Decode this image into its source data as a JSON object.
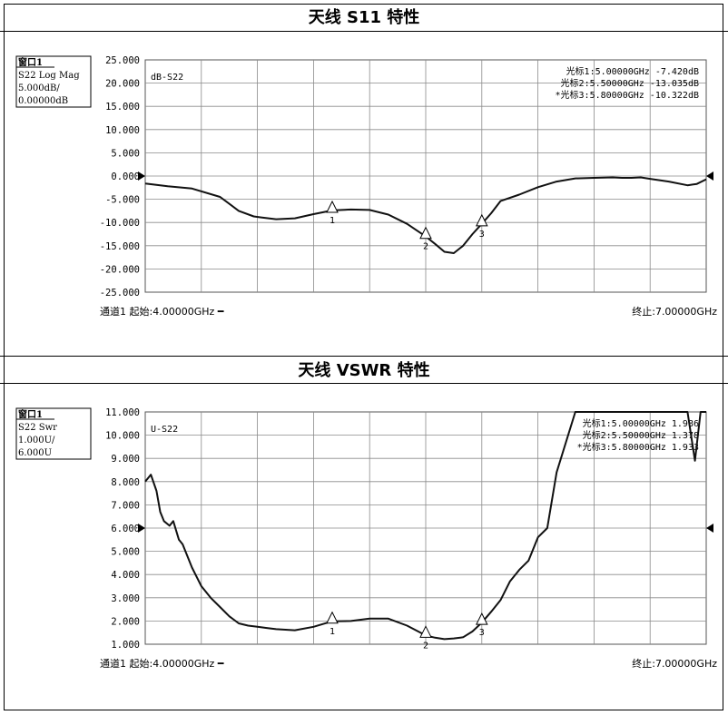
{
  "sections": [
    {
      "title": "天线 S11 特性",
      "window_box": [
        "窗口1",
        "S22 Log Mag",
        "5.000dB/",
        "0.00000dB"
      ],
      "trace_label": "dB-S22",
      "markers": [
        "光标1:5.00000GHz -7.420dB",
        "光标2:5.50000GHz -13.035dB",
        "*光标3:5.80000GHz -10.322dB"
      ],
      "footer_left": "通道1  起始:4.00000GHz ━",
      "footer_right": "终止:7.00000GHz"
    },
    {
      "title": "天线 VSWR 特性",
      "window_box": [
        "窗口1",
        "S22 Swr",
        "1.000U/",
        "6.000U"
      ],
      "trace_label": "U-S22",
      "markers": [
        "光标1:5.00000GHz 1.986",
        "光标2:5.50000GHz 1.378",
        "*光标3:5.80000GHz 1.933"
      ],
      "footer_left": "通道1  起始:4.00000GHz ━",
      "footer_right": "终止:7.00000GHz"
    }
  ],
  "chart_data": [
    {
      "type": "line",
      "title": "天线 S11 特性",
      "xlim": [
        4.0,
        7.0
      ],
      "ylim": [
        -25,
        25
      ],
      "yticks": [
        "25.000",
        "20.000",
        "15.000",
        "10.000",
        "5.000",
        "0.000",
        "-5.000",
        "-10.000",
        "-15.000",
        "-20.000",
        "-25.000"
      ],
      "grid": true,
      "series": [
        {
          "name": "dB-S22",
          "x": [
            4.0,
            4.12,
            4.25,
            4.4,
            4.5,
            4.58,
            4.62,
            4.7,
            4.8,
            4.9,
            5.0,
            5.1,
            5.2,
            5.3,
            5.4,
            5.5,
            5.55,
            5.6,
            5.65,
            5.7,
            5.75,
            5.8,
            5.85,
            5.9,
            6.0,
            6.1,
            6.2,
            6.3,
            6.4,
            6.5,
            6.55,
            6.6,
            6.65,
            6.7,
            6.8,
            6.9,
            6.95,
            7.0
          ],
          "y": [
            -1.6,
            -2.2,
            -2.7,
            -4.5,
            -7.5,
            -8.7,
            -8.9,
            -9.3,
            -9.1,
            -8.2,
            -7.4,
            -7.2,
            -7.3,
            -8.3,
            -10.3,
            -13.0,
            -14.6,
            -16.3,
            -16.6,
            -15.0,
            -12.5,
            -10.3,
            -8.0,
            -5.4,
            -4.0,
            -2.4,
            -1.2,
            -0.5,
            -0.4,
            -0.3,
            -0.4,
            -0.4,
            -0.3,
            -0.6,
            -1.2,
            -2.0,
            -1.7,
            -0.7
          ]
        }
      ],
      "markers": [
        {
          "label": "1",
          "x": 5.0,
          "y": -7.42
        },
        {
          "label": "2",
          "x": 5.5,
          "y": -13.035
        },
        {
          "label": "3",
          "x": 5.8,
          "y": -10.322
        }
      ]
    },
    {
      "type": "line",
      "title": "天线 VSWR 特性",
      "xlim": [
        4.0,
        7.0
      ],
      "ylim": [
        1,
        11
      ],
      "yticks": [
        "11.000",
        "10.000",
        "9.000",
        "8.000",
        "7.000",
        "6.000",
        "5.000",
        "4.000",
        "3.000",
        "2.000",
        "1.000"
      ],
      "grid": true,
      "series": [
        {
          "name": "U-S22",
          "x": [
            4.0,
            4.03,
            4.06,
            4.08,
            4.1,
            4.13,
            4.15,
            4.18,
            4.2,
            4.25,
            4.3,
            4.35,
            4.4,
            4.45,
            4.5,
            4.55,
            4.6,
            4.65,
            4.7,
            4.8,
            4.9,
            5.0,
            5.1,
            5.2,
            5.3,
            5.4,
            5.5,
            5.55,
            5.6,
            5.65,
            5.7,
            5.75,
            5.8,
            5.85,
            5.9,
            5.95,
            6.0,
            6.05,
            6.1,
            6.15,
            6.2,
            6.3,
            6.45,
            6.6,
            6.9,
            6.94,
            6.97,
            7.0
          ],
          "y": [
            8.0,
            8.3,
            7.6,
            6.7,
            6.3,
            6.1,
            6.3,
            5.5,
            5.3,
            4.3,
            3.5,
            3.0,
            2.6,
            2.2,
            1.9,
            1.8,
            1.75,
            1.7,
            1.65,
            1.6,
            1.75,
            1.99,
            2.0,
            2.1,
            2.1,
            1.8,
            1.38,
            1.28,
            1.22,
            1.25,
            1.3,
            1.55,
            1.93,
            2.4,
            2.9,
            3.7,
            4.2,
            4.6,
            5.6,
            6.0,
            8.4,
            11.0,
            11.0,
            11.0,
            11.0,
            8.9,
            11.0,
            11.0
          ]
        }
      ],
      "markers": [
        {
          "label": "1",
          "x": 5.0,
          "y": 1.986
        },
        {
          "label": "2",
          "x": 5.5,
          "y": 1.378
        },
        {
          "label": "3",
          "x": 5.8,
          "y": 1.933
        }
      ]
    }
  ]
}
